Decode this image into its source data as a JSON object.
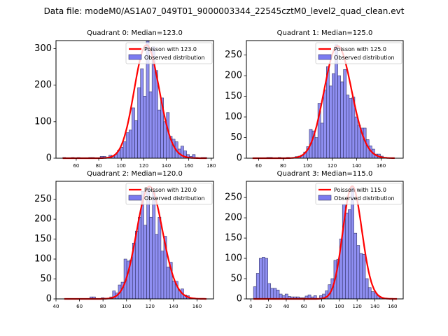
{
  "figure": {
    "suptitle": "Data file: modeM0/AS1A07_049T01_9000003344_22545cztM0_level2_quad_clean.evt"
  },
  "colors": {
    "hist_fill": "#7b7bf0",
    "hist_edge": "#333366",
    "poisson_line": "#ff0000"
  },
  "chart_data": [
    {
      "type": "bar",
      "title": "Quadrant 0: Median=123.0",
      "legend": [
        "Poisson with 123.0",
        "Observed distribution"
      ],
      "legend_position": "top-right",
      "median": 123.0,
      "xlim": [
        42,
        182
      ],
      "ylim": [
        0,
        322
      ],
      "xticks": [
        60,
        80,
        100,
        120,
        140,
        160,
        180
      ],
      "yticks": [
        0,
        100,
        200,
        300
      ],
      "bin_start": 48,
      "bin_width": 2.56,
      "counts": [
        2,
        0,
        0,
        2,
        0,
        2,
        0,
        0,
        0,
        2,
        2,
        0,
        0,
        5,
        5,
        0,
        8,
        7,
        10,
        22,
        30,
        45,
        70,
        77,
        138,
        103,
        193,
        245,
        170,
        320,
        182,
        305,
        240,
        132,
        165,
        100,
        125,
        60,
        52,
        45,
        25,
        33,
        20,
        10,
        5,
        10,
        2,
        0,
        2,
        2
      ],
      "poisson_lambda": 123.0,
      "poisson_peak": 310
    },
    {
      "type": "bar",
      "title": "Quadrant 1: Median=125.0",
      "legend": [
        "Poisson with 125.0",
        "Observed distribution"
      ],
      "legend_position": "top-right",
      "median": 125.0,
      "xlim": [
        50,
        178
      ],
      "ylim": [
        0,
        285
      ],
      "xticks": [
        60,
        80,
        100,
        120,
        140,
        160
      ],
      "yticks": [
        0,
        50,
        100,
        150,
        200,
        250
      ],
      "bin_start": 55,
      "bin_width": 2.32,
      "counts": [
        0,
        0,
        0,
        0,
        0,
        2,
        2,
        0,
        0,
        2,
        0,
        0,
        2,
        0,
        2,
        4,
        5,
        8,
        15,
        28,
        70,
        66,
        50,
        133,
        85,
        165,
        222,
        175,
        205,
        275,
        200,
        185,
        215,
        153,
        145,
        148,
        100,
        80,
        73,
        73,
        45,
        30,
        22,
        10,
        10,
        5,
        2,
        0,
        0,
        0
      ],
      "poisson_lambda": 125.0,
      "poisson_peak": 272
    },
    {
      "type": "bar",
      "title": "Quadrant 2: Median=120.0",
      "legend": [
        "Poisson with 120.0",
        "Observed distribution"
      ],
      "legend_position": "top-right",
      "median": 120.0,
      "xlim": [
        40,
        174
      ],
      "ylim": [
        0,
        295
      ],
      "xticks": [
        40,
        60,
        80,
        100,
        120,
        140,
        160
      ],
      "yticks": [
        0,
        50,
        100,
        150,
        200,
        250
      ],
      "bin_start": 47,
      "bin_width": 2.42,
      "counts": [
        0,
        0,
        0,
        0,
        0,
        0,
        0,
        0,
        0,
        5,
        5,
        0,
        0,
        3,
        2,
        2,
        5,
        20,
        15,
        35,
        42,
        100,
        95,
        98,
        140,
        170,
        205,
        270,
        185,
        280,
        205,
        270,
        162,
        205,
        120,
        157,
        80,
        92,
        45,
        44,
        20,
        25,
        10,
        8,
        0,
        0,
        0,
        0,
        0,
        0
      ],
      "poisson_lambda": 120.0,
      "poisson_peak": 282
    },
    {
      "type": "bar",
      "title": "Quadrant 3: Median=115.0",
      "legend": [
        "Poisson with 115.0",
        "Observed distribution"
      ],
      "legend_position": "top-right",
      "median": 115.0,
      "xlim": [
        -5,
        172
      ],
      "ylim": [
        0,
        290
      ],
      "xticks": [
        0,
        20,
        40,
        60,
        80,
        100,
        120,
        140,
        160
      ],
      "yticks": [
        0,
        50,
        100,
        150,
        200,
        250
      ],
      "bin_start": 3,
      "bin_width": 3.24,
      "counts": [
        30,
        63,
        100,
        103,
        100,
        38,
        26,
        26,
        22,
        12,
        8,
        12,
        6,
        5,
        5,
        5,
        3,
        3,
        7,
        10,
        5,
        8,
        0,
        8,
        12,
        20,
        35,
        50,
        95,
        98,
        148,
        233,
        212,
        220,
        275,
        162,
        132,
        112,
        110,
        50,
        28,
        18,
        15,
        8,
        3,
        2,
        0,
        0,
        0,
        0
      ],
      "poisson_lambda": 115.0,
      "poisson_peak": 278
    }
  ]
}
